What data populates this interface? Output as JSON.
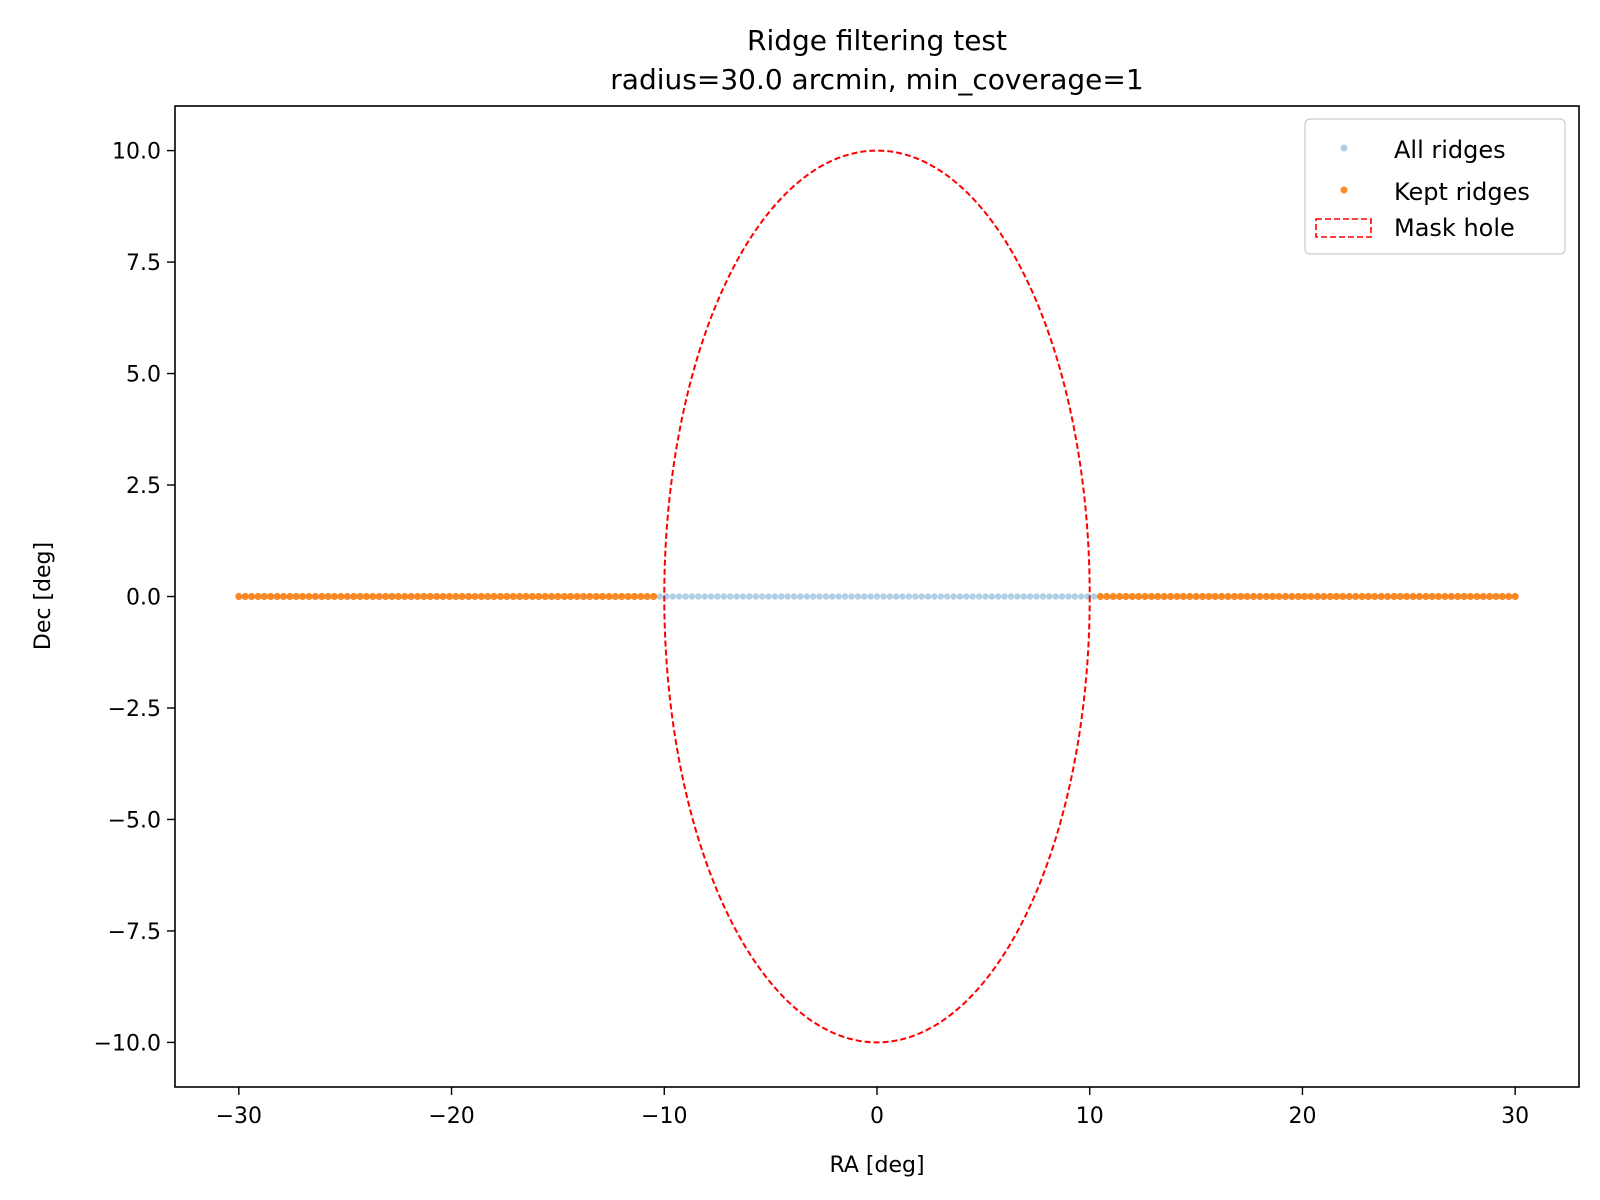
{
  "chart_data": {
    "type": "scatter",
    "title": "Ridge filtering test",
    "subtitle": "radius=30.0 arcmin, min_coverage=1",
    "xlabel": "RA [deg]",
    "ylabel": "Dec [deg]",
    "xlim": [
      -33,
      33
    ],
    "ylim": [
      -11,
      11
    ],
    "xticks": [
      -30,
      -20,
      -10,
      0,
      10,
      20,
      30
    ],
    "xtick_labels": [
      "−30",
      "−20",
      "−10",
      "0",
      "10",
      "20",
      "30"
    ],
    "yticks": [
      -10,
      -7.5,
      -5,
      -2.5,
      0,
      2.5,
      5,
      7.5,
      10
    ],
    "ytick_labels": [
      "−10.0",
      "−7.5",
      "−5.0",
      "−2.5",
      "0.0",
      "2.5",
      "5.0",
      "7.5",
      "10.0"
    ],
    "grid": false,
    "legend_position": "top-right",
    "series": [
      {
        "name": "All ridges",
        "kind": "scatter",
        "color": "#1f77b4",
        "opacity": 0.35,
        "x_range": [
          -30,
          30
        ],
        "n_points": 201,
        "y": 0
      },
      {
        "name": "Kept ridges",
        "kind": "scatter",
        "color": "#ff7f0e",
        "opacity": 0.9,
        "x_range": [
          -30,
          30
        ],
        "n_points": 201,
        "y": 0,
        "excluded_abs_x_below": 10.5
      },
      {
        "name": "Mask hole",
        "kind": "ellipse-outline",
        "color": "#ff0000",
        "linestyle": "dashed",
        "center": [
          0,
          0
        ],
        "radius": 10
      }
    ]
  }
}
